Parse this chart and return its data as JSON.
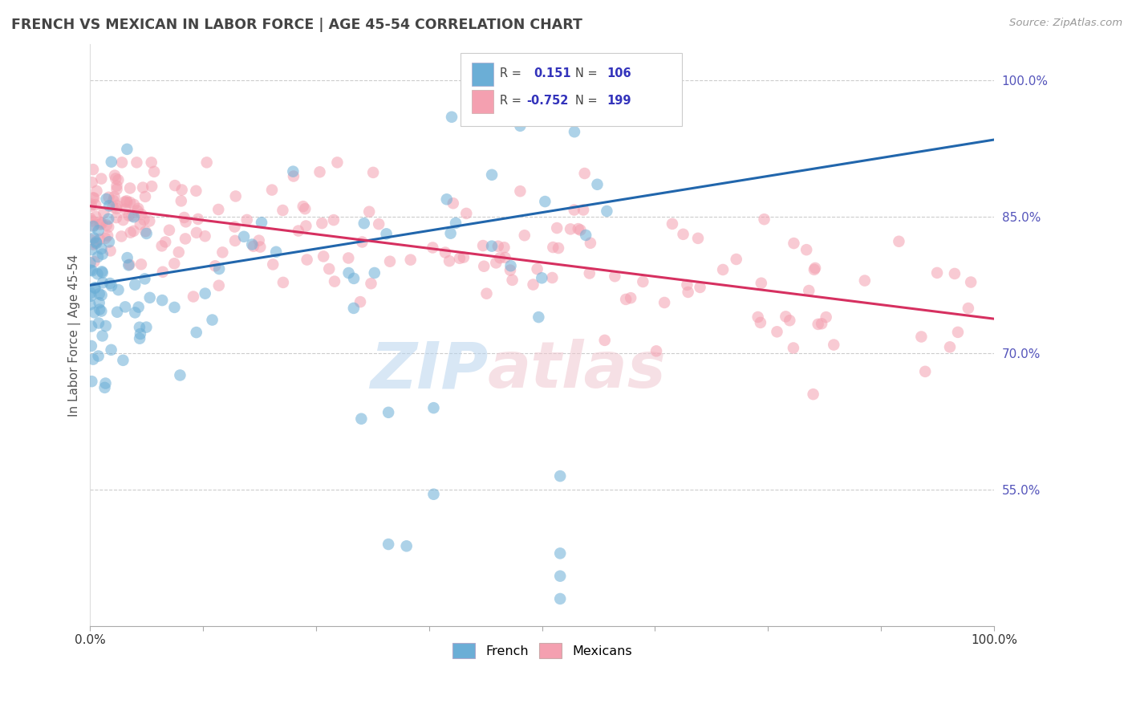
{
  "title": "FRENCH VS MEXICAN IN LABOR FORCE | AGE 45-54 CORRELATION CHART",
  "source": "Source: ZipAtlas.com",
  "ylabel": "In Labor Force | Age 45-54",
  "xlim": [
    0.0,
    1.0
  ],
  "ylim": [
    0.4,
    1.04
  ],
  "right_yticks": [
    0.55,
    0.7,
    0.85,
    1.0
  ],
  "right_yticklabels": [
    "55.0%",
    "70.0%",
    "85.0%",
    "100.0%"
  ],
  "french_R": 0.151,
  "french_N": 106,
  "mexican_R": -0.752,
  "mexican_N": 199,
  "french_color": "#6baed6",
  "mexican_color": "#f4a0b0",
  "french_line_color": "#2166ac",
  "mexican_line_color": "#d63060",
  "french_trend_start_y": 0.775,
  "french_trend_end_y": 0.935,
  "mexican_trend_start_y": 0.862,
  "mexican_trend_end_y": 0.738,
  "watermark_zip": "ZIP",
  "watermark_atlas": "atlas",
  "background_color": "#ffffff",
  "grid_color": "#cccccc",
  "title_color": "#444444",
  "tick_label_color": "#5555bb",
  "legend_border_color": "#cccccc"
}
